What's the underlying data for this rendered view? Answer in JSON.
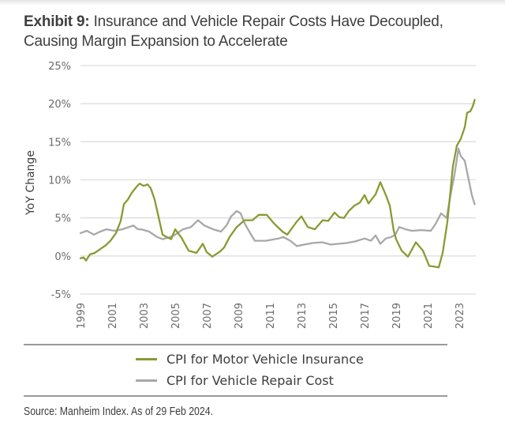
{
  "title": {
    "lead": "Exhibit 9:",
    "line1_rest": " Insurance and Vehicle Repair Costs Have Decoupled,",
    "line2": "Causing Margin Expansion to Accelerate"
  },
  "source": "Source: Manheim Index. As of 29 Feb 2024.",
  "chart_data": {
    "type": "line",
    "title": "Exhibit 9: Insurance and Vehicle Repair Costs Have Decoupled, Causing Margin Expansion to Accelerate",
    "xlabel": "",
    "ylabel": "YoY Change",
    "xlim": [
      1999,
      2024.05
    ],
    "ylim": [
      -5,
      25
    ],
    "grid": true,
    "legend_position": "bottom",
    "x_ticks": [
      "1999",
      "2001",
      "2003",
      "2005",
      "2007",
      "2009",
      "2011",
      "2013",
      "2015",
      "2017",
      "2019",
      "2021",
      "2023"
    ],
    "x_tick_values": [
      1999,
      2001,
      2003,
      2005,
      2007,
      2009,
      2011,
      2013,
      2015,
      2017,
      2019,
      2021,
      2023
    ],
    "y_ticks": [
      "-5%",
      "0%",
      "5%",
      "10%",
      "15%",
      "20%",
      "25%"
    ],
    "y_tick_values": [
      -5,
      0,
      5,
      10,
      15,
      20,
      25
    ],
    "series": [
      {
        "name": "CPI for Motor Vehicle Insurance",
        "color": "#8a9a32",
        "x": [
          1999.0,
          1999.2,
          1999.35,
          1999.6,
          1999.9,
          2000.25,
          2000.6,
          2000.9,
          2001.25,
          2001.4,
          2001.55,
          2001.75,
          2002.0,
          2002.25,
          2002.6,
          2002.75,
          2003.0,
          2003.25,
          2003.45,
          2003.7,
          2003.95,
          2004.2,
          2004.45,
          2004.75,
          2005.0,
          2005.4,
          2005.85,
          2006.35,
          2006.75,
          2007.0,
          2007.35,
          2007.85,
          2008.1,
          2008.45,
          2008.9,
          2009.4,
          2009.9,
          2010.3,
          2010.8,
          2011.25,
          2011.8,
          2012.1,
          2012.7,
          2013.0,
          2013.4,
          2013.85,
          2014.35,
          2014.7,
          2015.1,
          2015.4,
          2015.7,
          2016.0,
          2016.35,
          2016.7,
          2017.0,
          2017.25,
          2017.7,
          2018.0,
          2018.35,
          2018.6,
          2018.85,
          2019.0,
          2019.35,
          2019.75,
          2020.25,
          2020.7,
          2021.1,
          2021.4,
          2021.7,
          2021.95,
          2022.25,
          2022.6,
          2022.85,
          2023.1,
          2023.35,
          2023.5,
          2023.7,
          2023.85,
          2023.98
        ],
        "values": [
          -0.3,
          -0.2,
          -0.6,
          0.2,
          0.4,
          0.9,
          1.4,
          2.0,
          3.0,
          3.8,
          4.6,
          6.8,
          7.4,
          8.3,
          9.2,
          9.5,
          9.2,
          9.4,
          8.9,
          7.4,
          5.1,
          2.8,
          2.5,
          2.2,
          3.5,
          2.4,
          0.7,
          0.4,
          1.6,
          0.5,
          -0.1,
          0.6,
          1.1,
          2.5,
          3.8,
          4.7,
          4.7,
          5.4,
          5.4,
          4.3,
          3.2,
          2.8,
          4.5,
          5.2,
          3.8,
          3.5,
          4.7,
          4.6,
          5.7,
          5.1,
          5.0,
          5.9,
          6.6,
          7.0,
          8.0,
          6.9,
          8.1,
          9.7,
          8.0,
          6.6,
          3.3,
          2.2,
          0.7,
          -0.1,
          1.8,
          0.7,
          -1.3,
          -1.4,
          -1.5,
          0.4,
          4.5,
          11.8,
          14.5,
          15.4,
          16.9,
          18.8,
          19.0,
          19.6,
          20.5
        ]
      },
      {
        "name": "CPI for Vehicle Repair Cost",
        "color": "#a8a8a8",
        "x": [
          1999.0,
          1999.4,
          1999.85,
          2000.25,
          2000.65,
          2001.15,
          2001.65,
          2002.35,
          2002.65,
          2002.85,
          2003.35,
          2003.85,
          2004.2,
          2004.7,
          2005.0,
          2005.5,
          2006.0,
          2006.45,
          2006.85,
          2007.4,
          2007.9,
          2008.25,
          2008.55,
          2008.9,
          2009.15,
          2009.4,
          2009.75,
          2010.05,
          2010.75,
          2011.55,
          2011.85,
          2012.3,
          2012.7,
          2013.2,
          2013.7,
          2014.3,
          2014.85,
          2015.4,
          2015.85,
          2016.4,
          2017.0,
          2017.4,
          2017.7,
          2018.0,
          2018.35,
          2018.7,
          2018.95,
          2019.2,
          2019.6,
          2020.0,
          2020.6,
          2021.2,
          2021.5,
          2021.85,
          2022.2,
          2022.45,
          2022.7,
          2022.95,
          2023.1,
          2023.35,
          2023.6,
          2023.8,
          2023.98
        ],
        "values": [
          3.0,
          3.3,
          2.8,
          3.2,
          3.5,
          3.3,
          3.5,
          4.0,
          3.5,
          3.5,
          3.2,
          2.5,
          2.2,
          2.5,
          2.8,
          3.5,
          3.8,
          4.7,
          4.0,
          3.5,
          3.2,
          4.0,
          5.2,
          5.9,
          5.6,
          4.3,
          3.0,
          2.0,
          2.0,
          2.3,
          2.5,
          2.0,
          1.3,
          1.5,
          1.7,
          1.8,
          1.5,
          1.6,
          1.7,
          1.9,
          2.3,
          2.0,
          2.7,
          1.6,
          2.3,
          2.5,
          2.8,
          3.8,
          3.5,
          3.3,
          3.4,
          3.3,
          4.2,
          5.6,
          5.0,
          8.0,
          10.7,
          14.1,
          13.1,
          12.5,
          10.0,
          8.0,
          6.8
        ]
      }
    ]
  }
}
